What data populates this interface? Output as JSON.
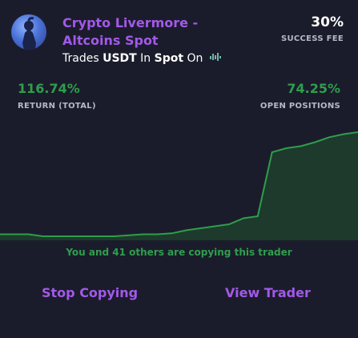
{
  "trader": {
    "name": "Crypto Livermore - Altcoins Spot",
    "trades_prefix": "Trades",
    "asset": "USDT",
    "in_word": "In",
    "market": "Spot",
    "on_word": "On",
    "venue_icon": "exchange-logo-icon"
  },
  "fee": {
    "value": "30%",
    "label": "SUCCESS FEE"
  },
  "stats": {
    "return_value": "116.74%",
    "return_label": "RETURN (TOTAL)",
    "open_value": "74.25%",
    "open_label": "OPEN POSITIONS"
  },
  "copying_text": "You and 41 others are copying this trader",
  "actions": {
    "stop_label": "Stop Copying",
    "view_label": "View Trader"
  },
  "colors": {
    "background": "#1b1c2b",
    "accent": "#a259e8",
    "positive": "#2e9e4c",
    "muted": "#b7b8c4"
  },
  "chart_data": {
    "type": "area",
    "x": [
      0,
      4,
      8,
      12,
      16,
      20,
      24,
      28,
      32,
      36,
      40,
      44,
      48,
      52,
      56,
      60,
      64,
      68,
      72,
      76,
      80,
      84,
      88,
      92,
      96,
      100
    ],
    "values": [
      6,
      6,
      6,
      4,
      4,
      4,
      4,
      4,
      4,
      5,
      6,
      6,
      7,
      10,
      12,
      14,
      16,
      22,
      24,
      88,
      92,
      94,
      98,
      103,
      106,
      108
    ],
    "xlabel": "",
    "ylabel": "",
    "ylim": [
      0,
      120
    ],
    "grid": false,
    "legend": "none"
  }
}
